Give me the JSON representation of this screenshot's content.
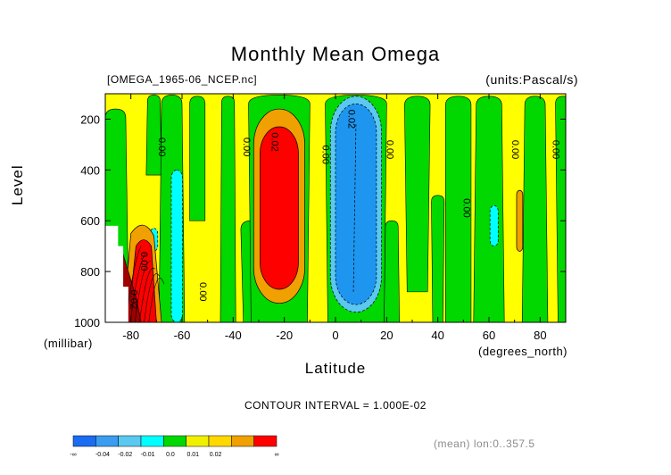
{
  "chart_data": {
    "type": "heatmap",
    "title": "Monthly Mean Omega",
    "file_label": "[OMEGA_1965-06_NCEP.nc]",
    "units_label": "(units:Pascal/s)",
    "xlabel": "Latitude",
    "x_unit_label": "(degrees_north)",
    "ylabel": "Level",
    "y_unit_label": "(millibar)",
    "xlim": [
      -90,
      90
    ],
    "ylim": [
      1000,
      100
    ],
    "x_ticks": [
      -80,
      -60,
      -40,
      -20,
      0,
      20,
      40,
      60,
      80
    ],
    "x_tick_labels": [
      "-80",
      "-60",
      "-40",
      "-20",
      "0",
      "20",
      "40",
      "60",
      "80"
    ],
    "y_ticks": [
      200,
      400,
      600,
      800,
      1000
    ],
    "y_tick_labels": [
      "200",
      "400",
      "600",
      "800",
      "1000"
    ],
    "contour_interval_text": "CONTOUR INTERVAL = 1.000E-02",
    "mean_text": "(mean) lon:0..357.5",
    "colorbar": {
      "colors": [
        "#1a6cf0",
        "#3c9cf0",
        "#5ac8f0",
        "#00ffff",
        "#00d800",
        "#f0f000",
        "#ffd800",
        "#f0a000",
        "#ff0000"
      ],
      "labels": [
        "-∞",
        "-0.04",
        "-0.02",
        "-0.01",
        "0.0",
        "0.01",
        "0.02",
        "∞"
      ]
    },
    "level_colors": {
      "neg3": "#1e96f0",
      "neg2": "#5ac8f0",
      "neg1": "#00ffff",
      "zero_minus": "#00d800",
      "zero_plus": "#ffff00",
      "pos1": "#f0a000",
      "pos2": "#ff0000",
      "pos3": "#a00000",
      "missing": "#ffffff"
    },
    "features": [
      {
        "name": "southern-descent-max",
        "lat": -22,
        "level_top": 230,
        "level_bottom": 870,
        "value": 0.03
      },
      {
        "name": "equatorial-ascent-min",
        "lat": 8,
        "level_top": 150,
        "level_bottom": 930,
        "value": -0.03
      },
      {
        "name": "antarctic-descent",
        "lat": -75,
        "level_top": 680,
        "level_bottom": 1000,
        "value": 0.04
      },
      {
        "name": "ascent-minus60",
        "lat": -62,
        "level_top": 400,
        "level_bottom": 1000,
        "value": -0.01
      },
      {
        "name": "ascent-60N",
        "lat": 62,
        "level_top": 540,
        "level_bottom": 700,
        "value": -0.01
      },
      {
        "name": "descent-72N",
        "lat": 72,
        "level_top": 480,
        "level_bottom": 720,
        "value": 0.01
      }
    ],
    "contour_labels": [
      {
        "text": "0.00",
        "lat": -69,
        "level": 310
      },
      {
        "text": "0.00",
        "lat": -36,
        "level": 310
      },
      {
        "text": "0.02",
        "lat": -25,
        "level": 290
      },
      {
        "text": "0.00",
        "lat": -5,
        "level": 340
      },
      {
        "text": "0.02",
        "lat": 5,
        "level": 200
      },
      {
        "text": "0.00",
        "lat": 20,
        "level": 320
      },
      {
        "text": "0.00",
        "lat": 50,
        "level": 550
      },
      {
        "text": "0.00",
        "lat": 69,
        "level": 320
      },
      {
        "text": "0.00",
        "lat": 85,
        "level": 320
      },
      {
        "text": "0.00",
        "lat": -53,
        "level": 880
      },
      {
        "text": "0.00",
        "lat": -76,
        "level": 760
      },
      {
        "text": "0.02",
        "lat": -80,
        "level": 910
      }
    ]
  }
}
